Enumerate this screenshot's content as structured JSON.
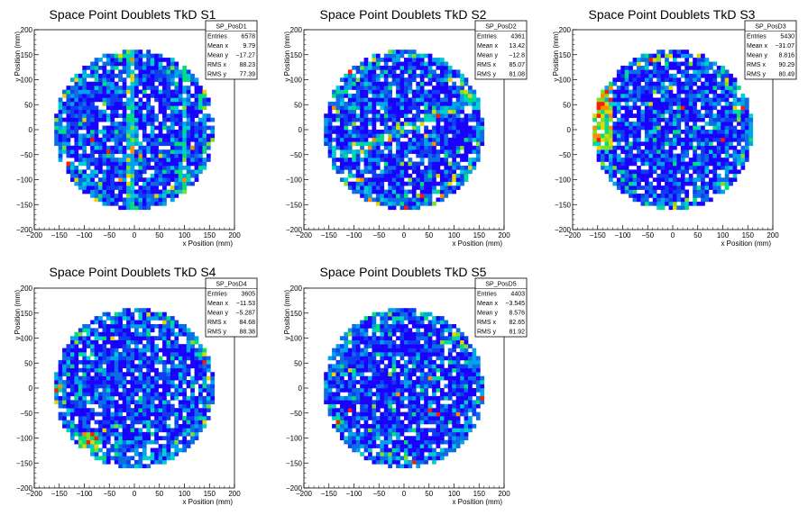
{
  "chart_data": [
    {
      "type": "heatmap",
      "title": "Space Point Doublets TkD S1",
      "xlabel": "x Position (mm)",
      "ylabel": "y Position (mm)",
      "xlim": [
        -200,
        200
      ],
      "ylim": [
        -200,
        200
      ],
      "xticks": [
        "−200",
        "−150",
        "−100",
        "−50",
        "0",
        "50",
        "100",
        "150",
        "200"
      ],
      "yticks": [
        "200",
        "150",
        "100",
        "50",
        "0",
        "−50",
        "−100",
        "−150",
        "−200"
      ],
      "stats": {
        "name": "SP_PosD1",
        "rows": [
          {
            "label": "Entries",
            "value": "6578"
          },
          {
            "label": "Mean x",
            "value": "9.79"
          },
          {
            "label": "Mean y",
            "value": "−17.27"
          },
          {
            "label": "RMS x",
            "value": "88.23"
          },
          {
            "label": "RMS y",
            "value": "77.39"
          }
        ]
      },
      "hotspots": [
        {
          "x": 100,
          "y": 0,
          "kind": "band-vertical"
        },
        {
          "x": -10,
          "y": 30,
          "kind": "band-vertical"
        }
      ],
      "seed": 11
    },
    {
      "type": "heatmap",
      "title": "Space Point Doublets TkD S2",
      "xlabel": "x Position (mm)",
      "ylabel": "y Position (mm)",
      "xlim": [
        -200,
        200
      ],
      "ylim": [
        -200,
        200
      ],
      "xticks": [
        "−200",
        "−150",
        "−100",
        "−50",
        "0",
        "50",
        "100",
        "150",
        "200"
      ],
      "yticks": [
        "200",
        "150",
        "100",
        "50",
        "0",
        "−50",
        "−100",
        "−150",
        "−200"
      ],
      "stats": {
        "name": "SP_PosD2",
        "rows": [
          {
            "label": "Entries",
            "value": "4361"
          },
          {
            "label": "Mean x",
            "value": "13.42"
          },
          {
            "label": "Mean y",
            "value": "−12.8"
          },
          {
            "label": "RMS x",
            "value": "85.07"
          },
          {
            "label": "RMS y",
            "value": "81.08"
          }
        ]
      },
      "hotspots": [
        {
          "x": 0,
          "y": 0,
          "kind": "band-diagonal"
        }
      ],
      "seed": 23
    },
    {
      "type": "heatmap",
      "title": "Space Point Doublets TkD S3",
      "xlabel": "x Position (mm)",
      "ylabel": "y Position (mm)",
      "xlim": [
        -200,
        200
      ],
      "ylim": [
        -200,
        200
      ],
      "xticks": [
        "−200",
        "−150",
        "−100",
        "−50",
        "0",
        "50",
        "100",
        "150",
        "200"
      ],
      "yticks": [
        "200",
        "150",
        "100",
        "50",
        "0",
        "−50",
        "−100",
        "−150",
        "−200"
      ],
      "stats": {
        "name": "SP_PosD3",
        "rows": [
          {
            "label": "Entries",
            "value": "5430"
          },
          {
            "label": "Mean x",
            "value": "−31.07"
          },
          {
            "label": "Mean y",
            "value": "8.816"
          },
          {
            "label": "RMS x",
            "value": "90.29"
          },
          {
            "label": "RMS y",
            "value": "80.49"
          }
        ]
      },
      "hotspots": [
        {
          "x": -150,
          "y": 40,
          "kind": "edge-left"
        }
      ],
      "seed": 37
    },
    {
      "type": "heatmap",
      "title": "Space Point Doublets TkD S4",
      "xlabel": "x Position (mm)",
      "ylabel": "y Position (mm)",
      "xlim": [
        -200,
        200
      ],
      "ylim": [
        -200,
        200
      ],
      "xticks": [
        "−200",
        "−150",
        "−100",
        "−50",
        "0",
        "50",
        "100",
        "150",
        "200"
      ],
      "yticks": [
        "200",
        "150",
        "100",
        "50",
        "0",
        "−50",
        "−100",
        "−150",
        "−200"
      ],
      "stats": {
        "name": "SP_PosD4",
        "rows": [
          {
            "label": "Entries",
            "value": "3605"
          },
          {
            "label": "Mean x",
            "value": "−11.53"
          },
          {
            "label": "Mean y",
            "value": "−5.287"
          },
          {
            "label": "RMS x",
            "value": "84.68"
          },
          {
            "label": "RMS y",
            "value": "88.38"
          }
        ]
      },
      "hotspots": [
        {
          "x": -90,
          "y": -110,
          "kind": "spot"
        }
      ],
      "seed": 41
    },
    {
      "type": "heatmap",
      "title": "Space Point Doublets TkD S5",
      "xlabel": "x Position (mm)",
      "ylabel": "y Position (mm)",
      "xlim": [
        -200,
        200
      ],
      "ylim": [
        -200,
        200
      ],
      "xticks": [
        "−200",
        "−150",
        "−100",
        "−50",
        "0",
        "50",
        "100",
        "150",
        "200"
      ],
      "yticks": [
        "200",
        "150",
        "100",
        "50",
        "0",
        "−50",
        "−100",
        "−150",
        "−200"
      ],
      "stats": {
        "name": "SP_PosD5",
        "rows": [
          {
            "label": "Entries",
            "value": "4403"
          },
          {
            "label": "Mean x",
            "value": "−3.545"
          },
          {
            "label": "Mean y",
            "value": "8.576"
          },
          {
            "label": "RMS x",
            "value": "82.65"
          },
          {
            "label": "RMS y",
            "value": "81.92"
          }
        ]
      },
      "hotspots": [],
      "seed": 53
    }
  ],
  "colors": {
    "palette": [
      "#1a00ff",
      "#0d3ff0",
      "#0c6ee6",
      "#00a4e8",
      "#00cfd0",
      "#00e07a",
      "#7de028",
      "#e6d600",
      "#ff8a00",
      "#ff1a00"
    ],
    "frame": "#000000",
    "background": "#ffffff"
  }
}
